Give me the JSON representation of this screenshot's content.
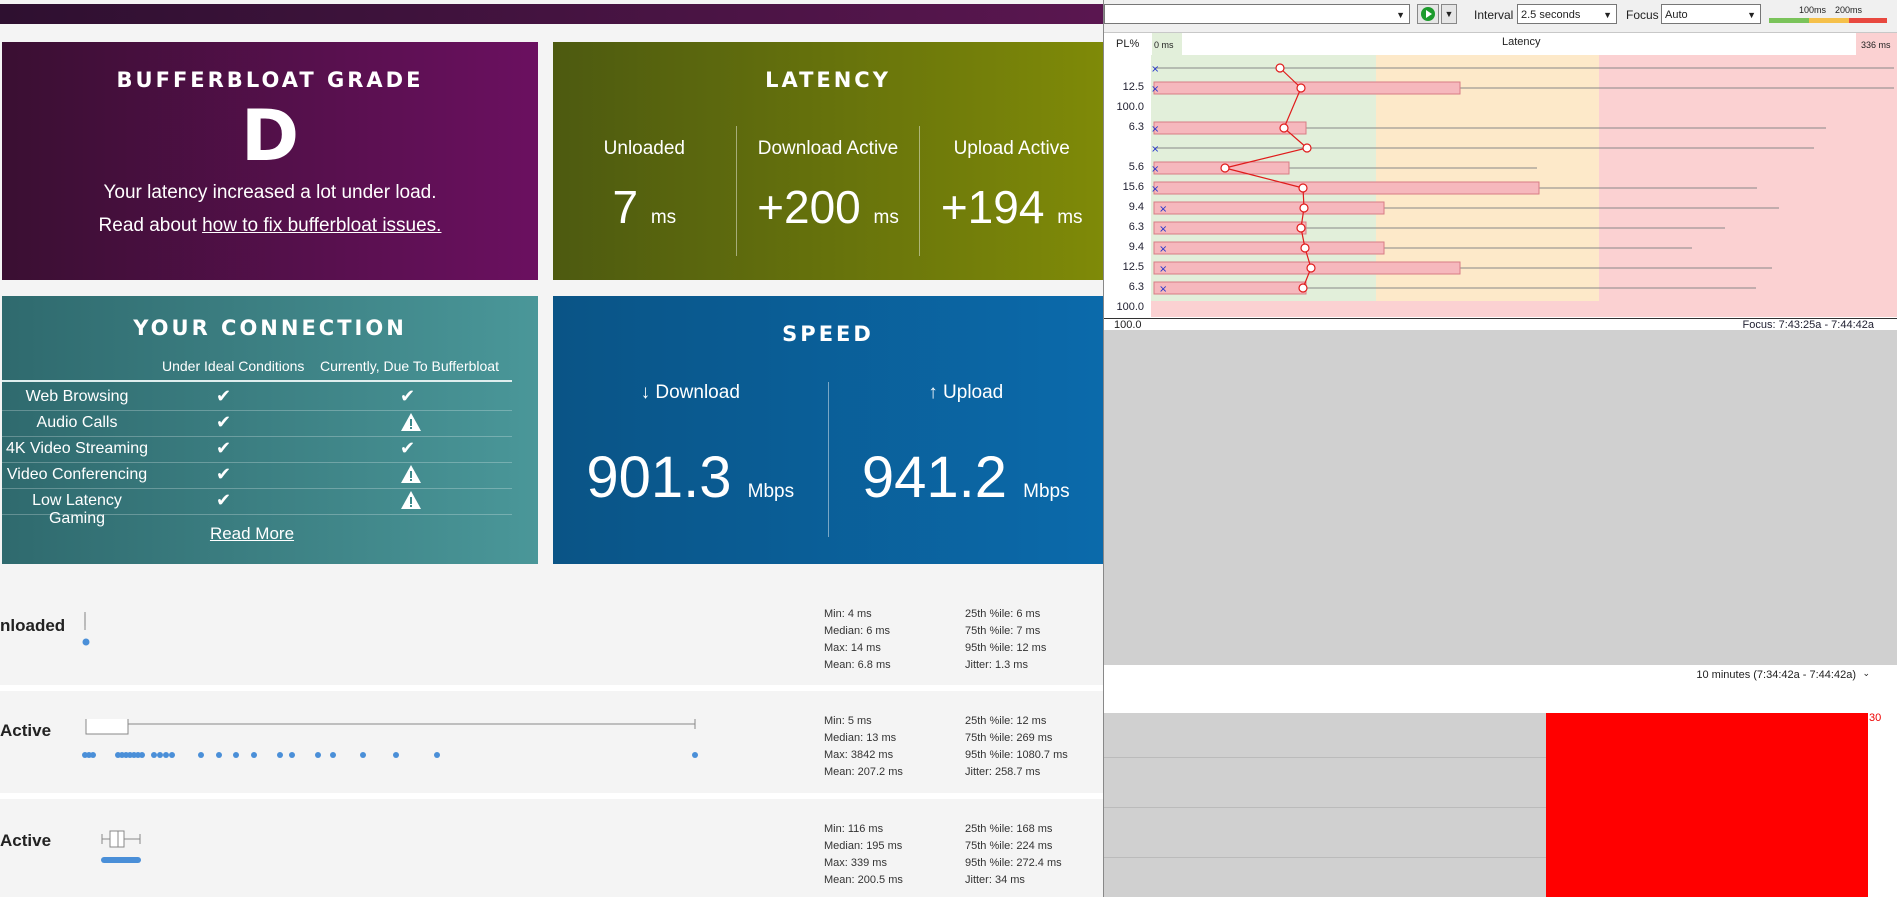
{
  "bufferbloat": {
    "title": "BUFFERBLOAT GRADE",
    "grade": "D",
    "message": "Your latency increased a lot under load.",
    "read_prefix": "Read about ",
    "read_link": "how to fix bufferbloat issues."
  },
  "latency": {
    "title": "LATENCY",
    "cols": [
      {
        "label": "Unloaded",
        "value": "7",
        "unit": "ms"
      },
      {
        "label": "Download Active",
        "value": "+200",
        "unit": "ms"
      },
      {
        "label": "Upload Active",
        "value": "+194",
        "unit": "ms"
      }
    ]
  },
  "connection": {
    "title": "YOUR CONNECTION",
    "col_ideal": "Under Ideal Conditions",
    "col_current": "Currently, Due To Bufferbloat",
    "rows": [
      {
        "name": "Web Browsing",
        "ideal": "check",
        "current": "check"
      },
      {
        "name": "Audio Calls",
        "ideal": "check",
        "current": "warning"
      },
      {
        "name": "4K Video Streaming",
        "ideal": "check",
        "current": "check"
      },
      {
        "name": "Video Conferencing",
        "ideal": "check",
        "current": "warning"
      },
      {
        "name": "Low Latency Gaming",
        "ideal": "check",
        "current": "warning"
      }
    ],
    "read_more": "Read More"
  },
  "speed": {
    "title": "SPEED",
    "download_label": "↓ Download",
    "download_value": "901.3",
    "upload_label": "↑ Upload",
    "upload_value": "941.2",
    "unit": "Mbps"
  },
  "latency_rows": [
    {
      "label": "nloaded",
      "stats_a": [
        "Min: 4 ms",
        "Median: 6 ms",
        "Max: 14 ms",
        "Mean: 6.8 ms"
      ],
      "stats_b": [
        "25th %ile: 6 ms",
        "75th %ile: 7 ms",
        "95th %ile: 12 ms",
        "Jitter: 1.3 ms"
      ]
    },
    {
      "label": "Active",
      "stats_a": [
        "Min: 5 ms",
        "Median: 13 ms",
        "Max: 3842 ms",
        "Mean: 207.2 ms"
      ],
      "stats_b": [
        "25th %ile: 12 ms",
        "75th %ile: 269 ms",
        "95th %ile: 1080.7 ms",
        "Jitter: 258.7 ms"
      ]
    },
    {
      "label": "Active",
      "stats_a": [
        "Min: 116 ms",
        "Median: 195 ms",
        "Max: 339 ms",
        "Mean: 200.5 ms"
      ],
      "stats_b": [
        "25th %ile: 168 ms",
        "75th %ile: 224 ms",
        "95th %ile: 272.4 ms",
        "Jitter: 34 ms"
      ]
    }
  ],
  "pingplotter": {
    "interval_label": "Interval",
    "interval_value": "2.5 seconds",
    "focus_label": "Focus",
    "focus_value": "Auto",
    "scale_100": "100ms",
    "scale_200": "200ms",
    "pl_header": "PL%",
    "zero_ms": "0 ms",
    "latency_header": "Latency",
    "max_ms": "336 ms",
    "pl_values": [
      "",
      "12.5",
      "100.0",
      "6.3",
      "",
      "5.6",
      "15.6",
      "9.4",
      "6.3",
      "9.4",
      "12.5",
      "6.3",
      "100.0"
    ],
    "footer_pl": "100.0",
    "focus_range": "Focus: 7:43:25a - 7:44:42a",
    "timeline_range": "10 minutes (7:34:42a - 7:44:42a)",
    "timeline_max": "30",
    "colors": {
      "good": "#e2efda",
      "warn": "#fde9c9",
      "bad": "#fbd1d2",
      "loss": "#ff0000"
    }
  }
}
